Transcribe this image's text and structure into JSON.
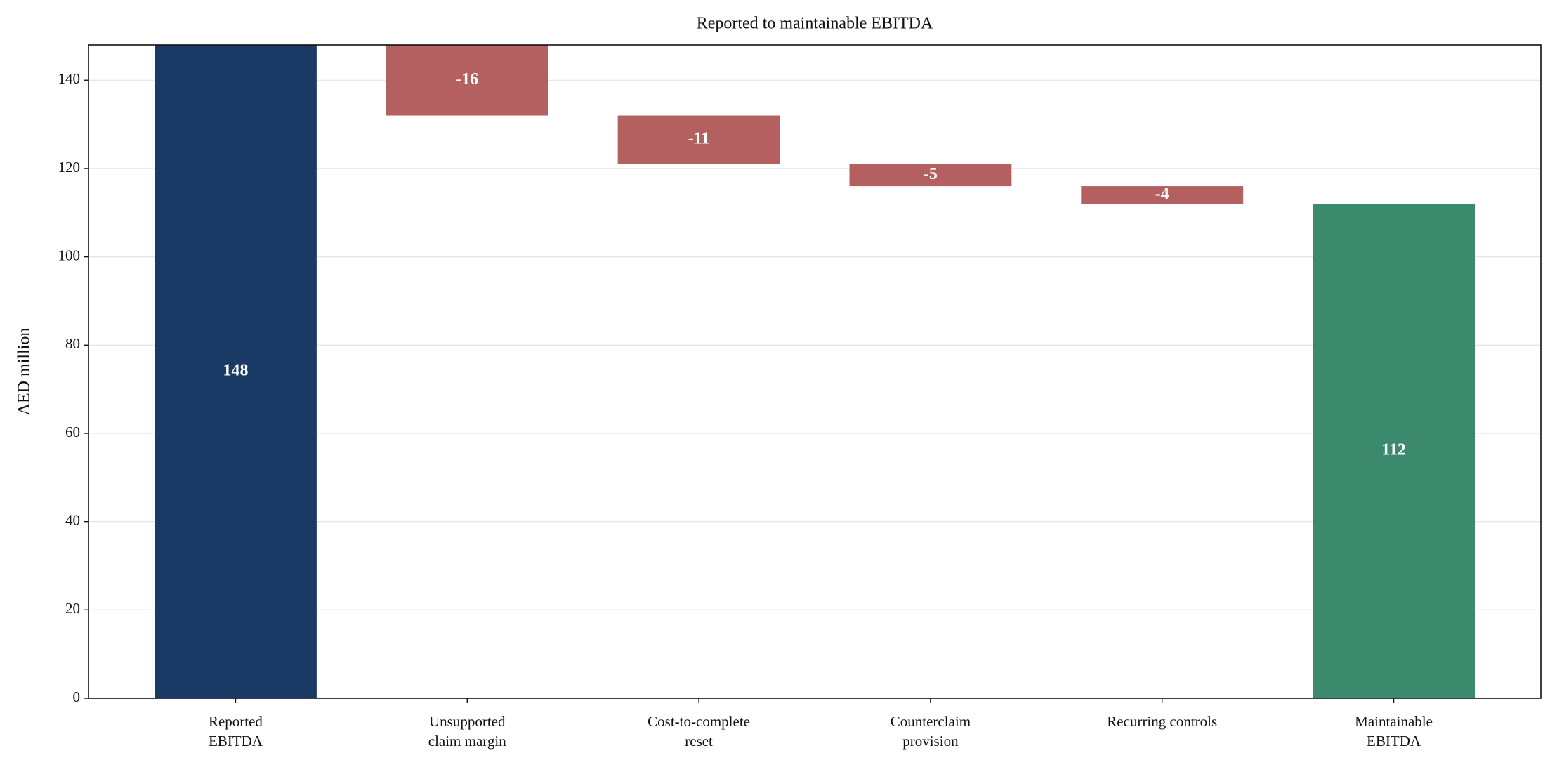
{
  "chart_data": {
    "type": "waterfall",
    "title": "Reported to maintainable EBITDA",
    "y_label": "AED million",
    "categories": [
      [
        "Reported",
        "EBITDA"
      ],
      [
        "Unsupported",
        "claim margin"
      ],
      [
        "Cost-to-complete",
        "reset"
      ],
      [
        "Counterclaim",
        "provision"
      ],
      [
        "Recurring controls"
      ],
      [
        "Maintainable",
        "EBITDA"
      ]
    ],
    "values": [
      148,
      -16,
      -11,
      -5,
      -4,
      112
    ],
    "measure": [
      "absolute",
      "relative",
      "relative",
      "relative",
      "relative",
      "total"
    ],
    "colors": {
      "absolute": "#1a3a66",
      "relative": "#b56060",
      "total": "#3b8a6d"
    },
    "ylim": [
      0,
      148
    ],
    "yticks": [
      0,
      20,
      40,
      60,
      80,
      100,
      120,
      140
    ],
    "grid": true
  }
}
